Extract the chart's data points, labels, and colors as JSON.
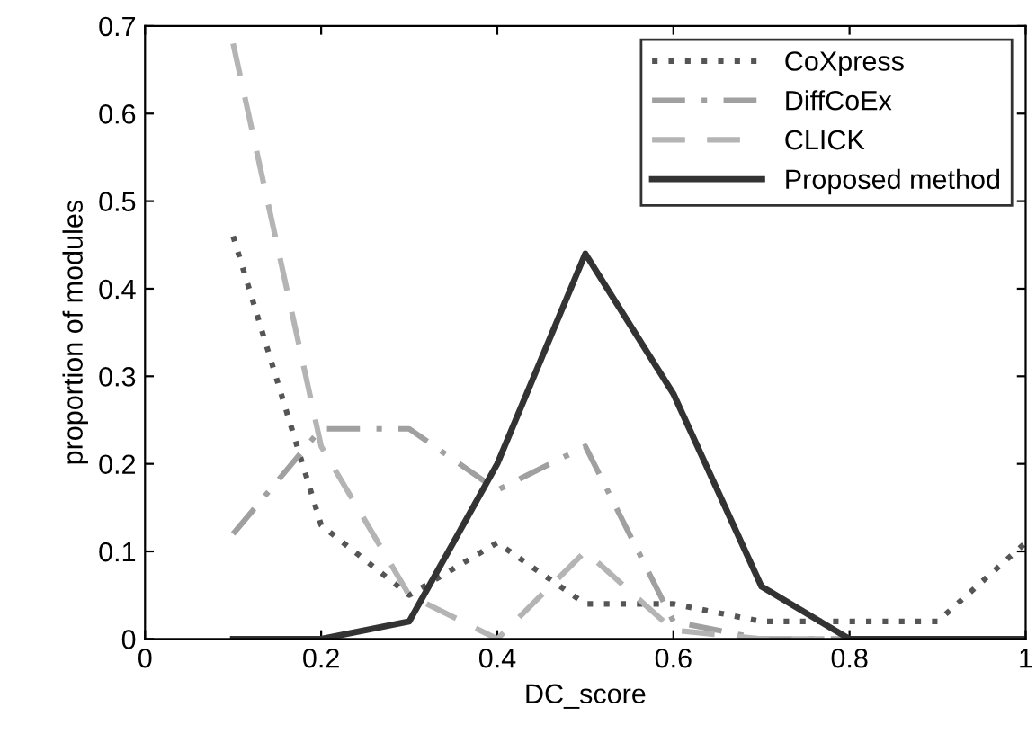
{
  "chart_data": {
    "type": "line",
    "xlabel": "DC_score",
    "ylabel": "proportion of modules",
    "x": [
      0.1,
      0.2,
      0.3,
      0.4,
      0.5,
      0.6,
      0.7,
      0.8,
      0.9,
      1.0
    ],
    "series": [
      {
        "name": "CoXpress",
        "color": "#555555",
        "line_style": "dotted",
        "values": [
          0.46,
          0.13,
          0.05,
          0.11,
          0.04,
          0.04,
          0.02,
          0.02,
          0.02,
          0.11
        ]
      },
      {
        "name": "DiffCoEx",
        "color": "#a0a0a0",
        "line_style": "dashdot",
        "values": [
          0.12,
          0.24,
          0.24,
          0.17,
          0.22,
          0.02,
          0.0,
          0.0,
          0.0,
          0.0
        ]
      },
      {
        "name": "CLICK",
        "color": "#b4b4b4",
        "line_style": "dashed",
        "values": [
          0.68,
          0.22,
          0.05,
          0.0,
          0.1,
          0.01,
          0.0,
          0.0,
          0.0,
          0.0
        ]
      },
      {
        "name": "Proposed method",
        "color": "#333333",
        "line_style": "solid",
        "values": [
          0.0,
          0.0,
          0.02,
          0.2,
          0.44,
          0.28,
          0.06,
          0.0,
          0.0,
          0.0
        ]
      }
    ],
    "xlim": [
      0,
      1
    ],
    "ylim": [
      0,
      0.7
    ],
    "xticks": [
      0,
      0.2,
      0.4,
      0.6,
      0.8,
      1
    ],
    "yticks": [
      0,
      0.1,
      0.2,
      0.3,
      0.4,
      0.5,
      0.6,
      0.7
    ],
    "grid": false,
    "legend": "top right",
    "marker": "none"
  }
}
